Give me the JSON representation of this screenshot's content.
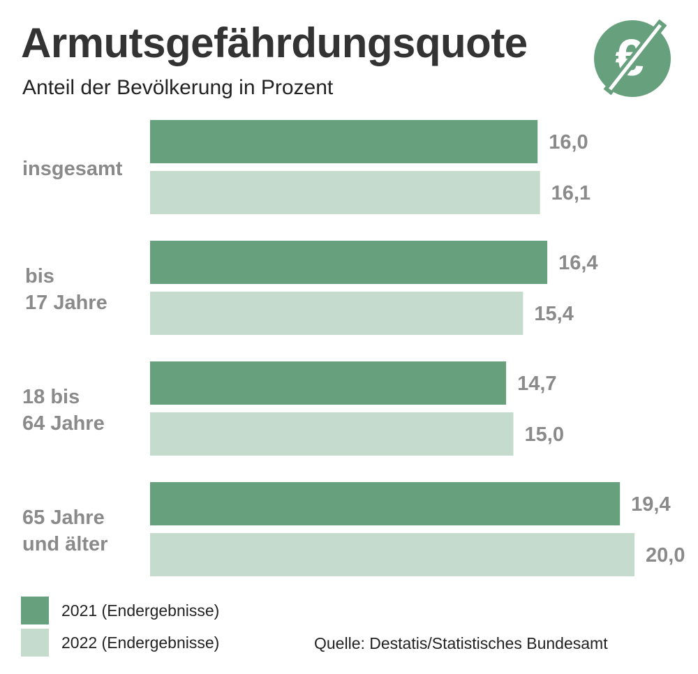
{
  "header": {
    "title": "Armutsgefährdungsquote",
    "subtitle": "Anteil der Bevölkerung in Prozent"
  },
  "logo": {
    "icon": "crossed-euro-icon",
    "circle_color": "#66a07d",
    "glyph": "€"
  },
  "colors": {
    "dark": "#66a07d",
    "light": "#c5dbcd",
    "value_text": "#8a8a8a"
  },
  "chart_data": {
    "type": "bar",
    "orientation": "horizontal",
    "categories": [
      [
        "insgesamt"
      ],
      [
        "bis",
        "17 Jahre"
      ],
      [
        "18 bis",
        "64 Jahre"
      ],
      [
        "65 Jahre",
        "und älter"
      ]
    ],
    "series": [
      {
        "name": "2021 (Endergebnisse)",
        "color": "#66a07d",
        "values": [
          16.0,
          16.4,
          14.7,
          19.4
        ],
        "labels": [
          "16,0",
          "16,4",
          "14,7",
          "19,4"
        ]
      },
      {
        "name": "2022 (Endergebnisse)",
        "color": "#c5dbcd",
        "values": [
          16.1,
          15.4,
          15.0,
          20.0
        ],
        "labels": [
          "16,1",
          "15,4",
          "15,0",
          "20,0"
        ]
      }
    ],
    "grid": false,
    "legend_position": "bottom-left"
  },
  "footer": {
    "source": "Quelle:  Destatis/Statistisches Bundesamt"
  }
}
